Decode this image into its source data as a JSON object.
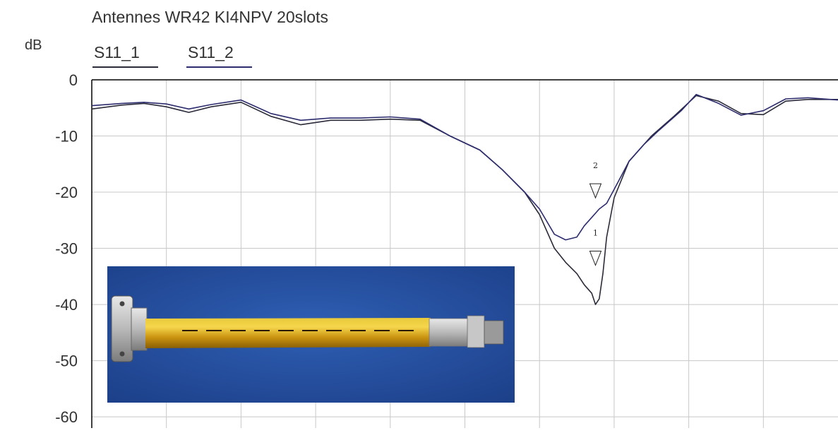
{
  "chart_data": {
    "type": "line",
    "title": "Antennes WR42 KI4NPV 20slots",
    "ylabel": "dB",
    "ylim": [
      -62,
      0
    ],
    "yticks": [
      0,
      -10,
      -20,
      -30,
      -40,
      -50,
      -60
    ],
    "ytick_labels": [
      "0",
      "-10",
      "-20",
      "-30",
      "-40",
      "-50",
      "-60"
    ],
    "xlim": [
      0,
      10
    ],
    "x_gridlines": 10,
    "grid": true,
    "legend_position": "top-left",
    "colors": {
      "series_1": "#2b2b3a",
      "series_2": "#2c2c6e",
      "grid": "#c8c8c8",
      "axis": "#000000"
    },
    "series": [
      {
        "name": "S11_1",
        "x": [
          0,
          0.4,
          0.7,
          1.0,
          1.3,
          1.6,
          2.0,
          2.4,
          2.8,
          3.2,
          3.6,
          4.0,
          4.4,
          4.8,
          5.2,
          5.5,
          5.8,
          6.0,
          6.2,
          6.35,
          6.5,
          6.6,
          6.7,
          6.75,
          6.8,
          6.85,
          6.9,
          7.0,
          7.2,
          7.5,
          7.8,
          8.1,
          8.4,
          8.7,
          9.0,
          9.3,
          9.6,
          10.0
        ],
        "y": [
          -5.2,
          -4.5,
          -4.2,
          -4.8,
          -5.8,
          -4.8,
          -4.0,
          -6.5,
          -8.0,
          -7.2,
          -7.2,
          -7.0,
          -7.2,
          -10.0,
          -12.5,
          -16.0,
          -20.0,
          -24.0,
          -30.0,
          -32.5,
          -34.5,
          -36.5,
          -38.0,
          -40.0,
          -39.0,
          -34.5,
          -28.0,
          -21.0,
          -14.5,
          -10.0,
          -6.5,
          -2.8,
          -3.8,
          -6.0,
          -6.2,
          -3.8,
          -3.5,
          -3.5
        ]
      },
      {
        "name": "S11_2",
        "x": [
          0,
          0.4,
          0.7,
          1.0,
          1.3,
          1.6,
          2.0,
          2.4,
          2.8,
          3.2,
          3.6,
          4.0,
          4.4,
          4.8,
          5.2,
          5.5,
          5.8,
          6.0,
          6.2,
          6.35,
          6.5,
          6.6,
          6.7,
          6.8,
          6.9,
          7.0,
          7.1,
          7.2,
          7.4,
          7.6,
          7.9,
          8.1,
          8.4,
          8.7,
          9.0,
          9.3,
          9.6,
          10.0
        ],
        "y": [
          -4.6,
          -4.2,
          -4.0,
          -4.3,
          -5.2,
          -4.4,
          -3.6,
          -6.0,
          -7.2,
          -6.8,
          -6.8,
          -6.6,
          -7.0,
          -10.0,
          -12.5,
          -16.0,
          -20.0,
          -23.0,
          -27.5,
          -28.5,
          -28.0,
          -26.0,
          -24.5,
          -23.0,
          -22.0,
          -19.5,
          -17.0,
          -14.5,
          -11.5,
          -9.0,
          -5.5,
          -2.6,
          -4.2,
          -6.3,
          -5.5,
          -3.4,
          -3.2,
          -3.6
        ]
      }
    ],
    "markers": [
      {
        "label": "2",
        "x": 6.75,
        "y": -18.5
      },
      {
        "label": "1",
        "x": 6.75,
        "y": -30.5
      }
    ]
  }
}
